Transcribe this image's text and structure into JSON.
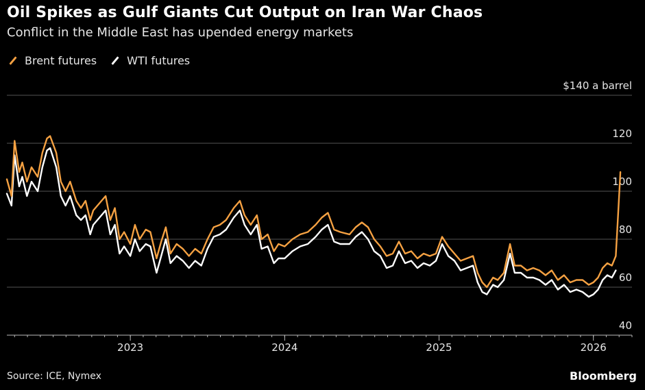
{
  "header": {
    "title": "Oil Spikes as Gulf Giants Cut Output on Iran War Chaos",
    "subtitle": "Conflict in the Middle East has upended energy markets"
  },
  "footer": {
    "source": "Source: ICE, Nymex",
    "brand": "Bloomberg"
  },
  "colors": {
    "brent": "#f5a142",
    "wti": "#ffffff",
    "grid": "#555555",
    "axis": "#bbbbbb"
  },
  "chart_data": {
    "type": "line",
    "title": "Oil Spikes as Gulf Giants Cut Output on Iran War Chaos",
    "subtitle": "Conflict in the Middle East has upended energy markets",
    "xlabel": "",
    "ylabel": "$ a barrel",
    "ylim": [
      40,
      140
    ],
    "yticks": [
      40,
      60,
      80,
      100,
      120,
      140
    ],
    "ytick_labels": [
      "40",
      "60",
      "80",
      "100",
      "120",
      "$140 a barrel"
    ],
    "xlim": [
      2022.2,
      2026.25
    ],
    "xticks": [
      2023,
      2024,
      2025,
      2026
    ],
    "xtick_labels": [
      "2023",
      "2024",
      "2025",
      "2026"
    ],
    "legend": [
      "Brent futures",
      "WTI futures"
    ],
    "legend_position": "top-left",
    "grid": true,
    "series": [
      {
        "name": "Brent futures",
        "points": [
          [
            2022.2,
            105
          ],
          [
            2022.23,
            98
          ],
          [
            2022.25,
            121
          ],
          [
            2022.28,
            108
          ],
          [
            2022.3,
            112
          ],
          [
            2022.33,
            104
          ],
          [
            2022.36,
            110
          ],
          [
            2022.4,
            106
          ],
          [
            2022.43,
            116
          ],
          [
            2022.46,
            122
          ],
          [
            2022.48,
            123
          ],
          [
            2022.52,
            116
          ],
          [
            2022.55,
            104
          ],
          [
            2022.58,
            100
          ],
          [
            2022.61,
            104
          ],
          [
            2022.65,
            96
          ],
          [
            2022.68,
            93
          ],
          [
            2022.71,
            96
          ],
          [
            2022.74,
            88
          ],
          [
            2022.76,
            92
          ],
          [
            2022.8,
            95
          ],
          [
            2022.84,
            98
          ],
          [
            2022.87,
            88
          ],
          [
            2022.9,
            93
          ],
          [
            2022.93,
            80
          ],
          [
            2022.96,
            83
          ],
          [
            2023.0,
            78
          ],
          [
            2023.03,
            86
          ],
          [
            2023.06,
            80
          ],
          [
            2023.1,
            84
          ],
          [
            2023.13,
            83
          ],
          [
            2023.17,
            72
          ],
          [
            2023.2,
            79
          ],
          [
            2023.23,
            85
          ],
          [
            2023.26,
            74
          ],
          [
            2023.3,
            78
          ],
          [
            2023.34,
            76
          ],
          [
            2023.38,
            73
          ],
          [
            2023.42,
            76
          ],
          [
            2023.46,
            74
          ],
          [
            2023.5,
            80
          ],
          [
            2023.54,
            85
          ],
          [
            2023.58,
            86
          ],
          [
            2023.62,
            88
          ],
          [
            2023.67,
            93
          ],
          [
            2023.71,
            96
          ],
          [
            2023.74,
            90
          ],
          [
            2023.78,
            86
          ],
          [
            2023.82,
            90
          ],
          [
            2023.85,
            80
          ],
          [
            2023.89,
            82
          ],
          [
            2023.93,
            75
          ],
          [
            2023.96,
            78
          ],
          [
            2024.0,
            77
          ],
          [
            2024.05,
            80
          ],
          [
            2024.1,
            82
          ],
          [
            2024.15,
            83
          ],
          [
            2024.2,
            86
          ],
          [
            2024.24,
            89
          ],
          [
            2024.28,
            91
          ],
          [
            2024.32,
            84
          ],
          [
            2024.36,
            83
          ],
          [
            2024.42,
            82
          ],
          [
            2024.46,
            85
          ],
          [
            2024.5,
            87
          ],
          [
            2024.54,
            85
          ],
          [
            2024.58,
            80
          ],
          [
            2024.62,
            77
          ],
          [
            2024.66,
            73
          ],
          [
            2024.7,
            74
          ],
          [
            2024.74,
            79
          ],
          [
            2024.78,
            74
          ],
          [
            2024.82,
            75
          ],
          [
            2024.86,
            72
          ],
          [
            2024.9,
            74
          ],
          [
            2024.94,
            73
          ],
          [
            2024.98,
            74
          ],
          [
            2025.02,
            81
          ],
          [
            2025.06,
            77
          ],
          [
            2025.1,
            74
          ],
          [
            2025.14,
            71
          ],
          [
            2025.18,
            72
          ],
          [
            2025.22,
            73
          ],
          [
            2025.25,
            66
          ],
          [
            2025.28,
            62
          ],
          [
            2025.31,
            60
          ],
          [
            2025.35,
            64
          ],
          [
            2025.38,
            63
          ],
          [
            2025.42,
            66
          ],
          [
            2025.46,
            78
          ],
          [
            2025.49,
            69
          ],
          [
            2025.53,
            69
          ],
          [
            2025.57,
            67
          ],
          [
            2025.61,
            68
          ],
          [
            2025.65,
            67
          ],
          [
            2025.69,
            65
          ],
          [
            2025.73,
            67
          ],
          [
            2025.77,
            63
          ],
          [
            2025.81,
            65
          ],
          [
            2025.85,
            62
          ],
          [
            2025.89,
            63
          ],
          [
            2025.93,
            63
          ],
          [
            2025.97,
            61
          ],
          [
            2026.0,
            62
          ],
          [
            2026.03,
            64
          ],
          [
            2026.06,
            68
          ],
          [
            2026.09,
            70
          ],
          [
            2026.12,
            69
          ],
          [
            2026.145,
            73
          ],
          [
            2026.16,
            90
          ],
          [
            2026.175,
            108
          ]
        ]
      },
      {
        "name": "WTI futures",
        "points": [
          [
            2022.2,
            99
          ],
          [
            2022.23,
            94
          ],
          [
            2022.25,
            115
          ],
          [
            2022.28,
            102
          ],
          [
            2022.3,
            106
          ],
          [
            2022.33,
            98
          ],
          [
            2022.36,
            104
          ],
          [
            2022.4,
            100
          ],
          [
            2022.43,
            110
          ],
          [
            2022.46,
            117
          ],
          [
            2022.48,
            118
          ],
          [
            2022.52,
            110
          ],
          [
            2022.55,
            98
          ],
          [
            2022.58,
            94
          ],
          [
            2022.61,
            98
          ],
          [
            2022.65,
            90
          ],
          [
            2022.68,
            88
          ],
          [
            2022.71,
            90
          ],
          [
            2022.74,
            82
          ],
          [
            2022.76,
            86
          ],
          [
            2022.8,
            89
          ],
          [
            2022.84,
            92
          ],
          [
            2022.87,
            82
          ],
          [
            2022.9,
            86
          ],
          [
            2022.93,
            74
          ],
          [
            2022.96,
            77
          ],
          [
            2023.0,
            73
          ],
          [
            2023.03,
            80
          ],
          [
            2023.06,
            75
          ],
          [
            2023.1,
            78
          ],
          [
            2023.13,
            77
          ],
          [
            2023.17,
            66
          ],
          [
            2023.2,
            73
          ],
          [
            2023.23,
            80
          ],
          [
            2023.26,
            70
          ],
          [
            2023.3,
            73
          ],
          [
            2023.34,
            71
          ],
          [
            2023.38,
            68
          ],
          [
            2023.42,
            71
          ],
          [
            2023.46,
            69
          ],
          [
            2023.5,
            76
          ],
          [
            2023.54,
            81
          ],
          [
            2023.58,
            82
          ],
          [
            2023.62,
            84
          ],
          [
            2023.67,
            89
          ],
          [
            2023.71,
            92
          ],
          [
            2023.74,
            86
          ],
          [
            2023.78,
            82
          ],
          [
            2023.82,
            86
          ],
          [
            2023.85,
            76
          ],
          [
            2023.89,
            77
          ],
          [
            2023.93,
            70
          ],
          [
            2023.96,
            72
          ],
          [
            2024.0,
            72
          ],
          [
            2024.05,
            75
          ],
          [
            2024.1,
            77
          ],
          [
            2024.15,
            78
          ],
          [
            2024.2,
            81
          ],
          [
            2024.24,
            84
          ],
          [
            2024.28,
            86
          ],
          [
            2024.32,
            79
          ],
          [
            2024.36,
            78
          ],
          [
            2024.42,
            78
          ],
          [
            2024.46,
            81
          ],
          [
            2024.5,
            83
          ],
          [
            2024.54,
            80
          ],
          [
            2024.58,
            75
          ],
          [
            2024.62,
            73
          ],
          [
            2024.66,
            68
          ],
          [
            2024.7,
            69
          ],
          [
            2024.74,
            75
          ],
          [
            2024.78,
            70
          ],
          [
            2024.82,
            71
          ],
          [
            2024.86,
            68
          ],
          [
            2024.9,
            70
          ],
          [
            2024.94,
            69
          ],
          [
            2024.98,
            71
          ],
          [
            2025.02,
            78
          ],
          [
            2025.06,
            73
          ],
          [
            2025.1,
            71
          ],
          [
            2025.14,
            67
          ],
          [
            2025.18,
            68
          ],
          [
            2025.22,
            69
          ],
          [
            2025.25,
            62
          ],
          [
            2025.28,
            58
          ],
          [
            2025.31,
            57
          ],
          [
            2025.35,
            61
          ],
          [
            2025.38,
            60
          ],
          [
            2025.42,
            63
          ],
          [
            2025.46,
            74
          ],
          [
            2025.49,
            66
          ],
          [
            2025.53,
            66
          ],
          [
            2025.57,
            64
          ],
          [
            2025.61,
            64
          ],
          [
            2025.65,
            63
          ],
          [
            2025.69,
            61
          ],
          [
            2025.73,
            63
          ],
          [
            2025.77,
            59
          ],
          [
            2025.81,
            61
          ],
          [
            2025.85,
            58
          ],
          [
            2025.89,
            59
          ],
          [
            2025.93,
            58
          ],
          [
            2025.97,
            56
          ],
          [
            2026.0,
            57
          ],
          [
            2026.03,
            59
          ],
          [
            2026.06,
            63
          ],
          [
            2026.09,
            65
          ],
          [
            2026.12,
            64
          ],
          [
            2026.145,
            67
          ]
        ]
      }
    ]
  }
}
